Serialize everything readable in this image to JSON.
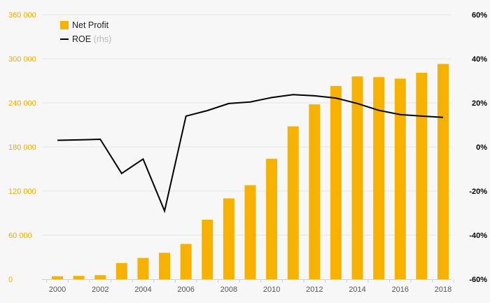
{
  "chart_data": {
    "type": "bar",
    "combo": "bar-with-line-secondary-axis",
    "x": [
      2000,
      2001,
      2002,
      2003,
      2004,
      2005,
      2006,
      2007,
      2008,
      2009,
      2010,
      2011,
      2012,
      2013,
      2014,
      2015,
      2016,
      2017,
      2018
    ],
    "x_tick_labels": [
      "2000",
      "2002",
      "2004",
      "2006",
      "2008",
      "2010",
      "2012",
      "2014",
      "2016",
      "2018"
    ],
    "series": [
      {
        "name": "Net Profit",
        "type": "bar",
        "axis": "left",
        "color": "#f7b200",
        "values": [
          4000,
          4500,
          5500,
          22000,
          29000,
          36000,
          48000,
          81000,
          110000,
          128000,
          164000,
          208000,
          238000,
          263000,
          276000,
          275000,
          273000,
          281000,
          293000
        ]
      },
      {
        "name": "ROE",
        "name_suffix": "(rhs)",
        "type": "line",
        "axis": "right",
        "color": "#000000",
        "values": [
          0.03,
          0.032,
          0.035,
          -0.12,
          -0.055,
          -0.29,
          0.14,
          0.165,
          0.197,
          0.204,
          0.224,
          0.237,
          0.232,
          0.222,
          0.197,
          0.166,
          0.147,
          0.14,
          0.134
        ]
      }
    ],
    "y_left": {
      "range": [
        0,
        360000
      ],
      "ticks": [
        0,
        60000,
        120000,
        180000,
        240000,
        300000,
        360000
      ],
      "tick_labels": [
        "0",
        "60 000",
        "120 000",
        "180 000",
        "240 000",
        "300 000",
        "360 000"
      ],
      "color": "#f2a900"
    },
    "y_right": {
      "range": [
        -0.6,
        0.6
      ],
      "ticks": [
        -0.6,
        -0.4,
        -0.2,
        0,
        0.2,
        0.4,
        0.6
      ],
      "tick_labels": [
        "-60%",
        "-40%",
        "-20%",
        "0%",
        "20%",
        "40%",
        "60%"
      ],
      "color": "#000000"
    },
    "legend": {
      "placement": "top-left",
      "items": [
        {
          "label": "Net Profit",
          "suffix": ""
        },
        {
          "label": "ROE",
          "suffix": "(rhs)"
        }
      ]
    },
    "grid": true,
    "title": "",
    "xlabel": "",
    "ylabel": ""
  }
}
